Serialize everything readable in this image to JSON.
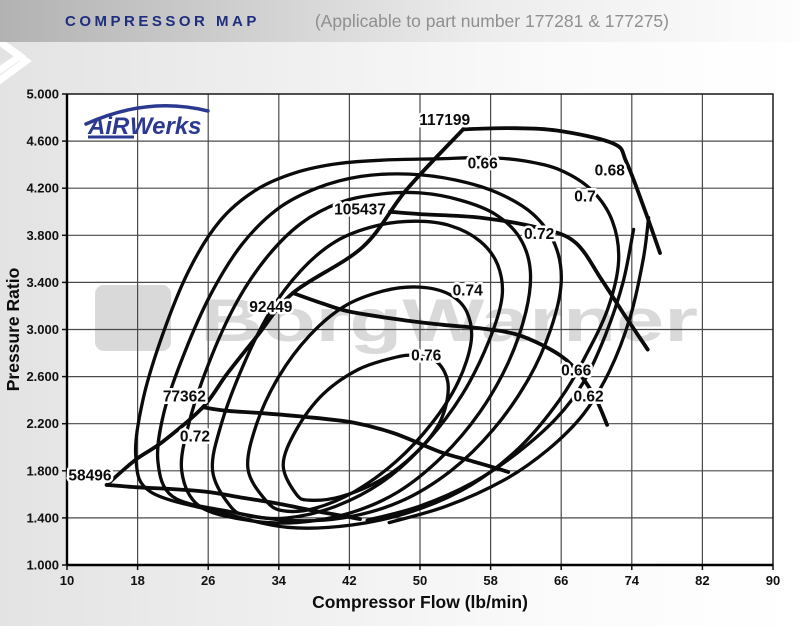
{
  "header": {
    "title": "COMPRESSOR MAP",
    "subtitle": "(Applicable to part number 177281 & 177275)"
  },
  "branding": {
    "plot_logo_air": "AiR",
    "plot_logo_werks": "Werks",
    "watermark_text": "BorgWarner"
  },
  "colors": {
    "header_title": "#1f2d7e",
    "header_subtitle": "#8f8f8f",
    "logo_navy": "#2b3990",
    "watermark_gray": "#d9d9d9",
    "curve_black": "#0b0b0b",
    "grid_gray": "#4a4a4a",
    "plot_bg": "#ffffff"
  },
  "chart_data": {
    "type": "line",
    "title": "COMPRESSOR MAP",
    "subtitle": "(Applicable to part number 177281 & 177275)",
    "xlabel": "Compressor Flow (lb/min)",
    "ylabel": "Pressure Ratio",
    "xlim": [
      10,
      90
    ],
    "ylim": [
      1.0,
      5.0
    ],
    "grid": true,
    "xticks": [
      "10",
      "18",
      "26",
      "34",
      "42",
      "50",
      "58",
      "66",
      "74",
      "82",
      "90"
    ],
    "yticks": [
      "1.000",
      "1.400",
      "1.800",
      "2.200",
      "2.600",
      "3.000",
      "3.400",
      "3.800",
      "4.200",
      "4.600",
      "5.000"
    ],
    "surge_line": {
      "name": "surge-line",
      "points": [
        [
          14.5,
          1.68
        ],
        [
          17.7,
          1.89
        ],
        [
          20.9,
          2.05
        ],
        [
          25.4,
          2.34
        ],
        [
          28.2,
          2.63
        ],
        [
          31.5,
          2.94
        ],
        [
          35.6,
          3.31
        ],
        [
          43.5,
          3.7
        ],
        [
          48.5,
          4.19
        ],
        [
          54.9,
          4.7
        ]
      ]
    },
    "speed_lines": [
      {
        "rpm": "58496",
        "label_at": [
          12.6,
          1.76
        ],
        "points": [
          [
            14.5,
            1.68
          ],
          [
            18,
            1.66
          ],
          [
            22,
            1.645
          ],
          [
            26,
            1.62
          ],
          [
            30,
            1.57
          ],
          [
            34,
            1.52
          ],
          [
            38,
            1.46
          ],
          [
            41,
            1.42
          ],
          [
            43.2,
            1.39
          ]
        ]
      },
      {
        "rpm": "77362",
        "label_at": [
          23.3,
          2.43
        ],
        "points": [
          [
            25.4,
            2.34
          ],
          [
            28,
            2.31
          ],
          [
            32,
            2.29
          ],
          [
            36.7,
            2.26
          ],
          [
            42.4,
            2.21
          ],
          [
            47,
            2.12
          ],
          [
            52.3,
            1.96
          ],
          [
            56,
            1.88
          ],
          [
            58.3,
            1.83
          ],
          [
            60,
            1.79
          ]
        ]
      },
      {
        "rpm": "92449",
        "label_at": [
          33.1,
          3.19
        ],
        "points": [
          [
            35.6,
            3.31
          ],
          [
            39,
            3.22
          ],
          [
            42.1,
            3.15
          ],
          [
            48.1,
            3.08
          ],
          [
            52.6,
            3.04
          ],
          [
            56.8,
            3.01
          ],
          [
            61.3,
            2.95
          ],
          [
            65.9,
            2.78
          ],
          [
            68.3,
            2.6
          ],
          [
            70,
            2.4
          ],
          [
            71.2,
            2.19
          ]
        ]
      },
      {
        "rpm": "105437",
        "label_at": [
          43.2,
          4.02
        ],
        "points": [
          [
            46.6,
            4.0
          ],
          [
            50,
            3.98
          ],
          [
            56.8,
            3.95
          ],
          [
            63.6,
            3.86
          ],
          [
            67.6,
            3.74
          ],
          [
            70.6,
            3.42
          ],
          [
            73.2,
            3.12
          ],
          [
            75.8,
            2.83
          ]
        ]
      },
      {
        "rpm": "117199",
        "label_at": [
          52.8,
          4.78
        ],
        "points": [
          [
            54.9,
            4.7
          ],
          [
            60,
            4.71
          ],
          [
            65.5,
            4.69
          ],
          [
            71.9,
            4.58
          ],
          [
            73.4,
            4.42
          ],
          [
            75.5,
            4.01
          ],
          [
            77.2,
            3.65
          ]
        ]
      }
    ],
    "efficiency_contours": [
      {
        "eta": "0.76",
        "closed": true,
        "points": [
          [
            36,
            1.6
          ],
          [
            34.5,
            1.85
          ],
          [
            36,
            2.15
          ],
          [
            39,
            2.45
          ],
          [
            43,
            2.66
          ],
          [
            47,
            2.76
          ],
          [
            49.5,
            2.78
          ],
          [
            52,
            2.72
          ],
          [
            53.2,
            2.52
          ],
          [
            52.3,
            2.22
          ],
          [
            49.5,
            1.95
          ],
          [
            45.5,
            1.72
          ],
          [
            41,
            1.58
          ],
          [
            37.5,
            1.55
          ]
        ],
        "labels": [
          [
            50.7,
            2.78
          ]
        ]
      },
      {
        "eta": "0.74",
        "closed": true,
        "points": [
          [
            32.5,
            1.55
          ],
          [
            30.5,
            1.82
          ],
          [
            31.5,
            2.2
          ],
          [
            34,
            2.6
          ],
          [
            37.5,
            2.95
          ],
          [
            41.5,
            3.2
          ],
          [
            46,
            3.33
          ],
          [
            50,
            3.36
          ],
          [
            53.3,
            3.3
          ],
          [
            55.3,
            3.15
          ],
          [
            55.8,
            2.9
          ],
          [
            54.3,
            2.55
          ],
          [
            51.3,
            2.2
          ],
          [
            47.3,
            1.88
          ],
          [
            42.5,
            1.62
          ],
          [
            38,
            1.48
          ],
          [
            34.5,
            1.46
          ]
        ],
        "labels": [
          [
            55.4,
            3.33
          ]
        ]
      },
      {
        "eta": "0.72",
        "closed": true,
        "points": [
          [
            28.5,
            1.5
          ],
          [
            26.5,
            1.8
          ],
          [
            27.5,
            2.2
          ],
          [
            30,
            2.7
          ],
          [
            33,
            3.15
          ],
          [
            36.5,
            3.5
          ],
          [
            40.5,
            3.75
          ],
          [
            45,
            3.88
          ],
          [
            49.5,
            3.92
          ],
          [
            53.5,
            3.88
          ],
          [
            56.8,
            3.75
          ],
          [
            58.8,
            3.55
          ],
          [
            59.3,
            3.28
          ],
          [
            57.8,
            2.9
          ],
          [
            54.8,
            2.45
          ],
          [
            50.8,
            2.05
          ],
          [
            46,
            1.72
          ],
          [
            40.5,
            1.5
          ],
          [
            35,
            1.4
          ],
          [
            30.5,
            1.42
          ]
        ],
        "labels": [
          [
            63.5,
            3.81
          ],
          [
            24.5,
            2.09
          ]
        ]
      },
      {
        "eta": "0.7",
        "closed": true,
        "points": [
          [
            25,
            1.5
          ],
          [
            23,
            1.8
          ],
          [
            23.8,
            2.2
          ],
          [
            26,
            2.7
          ],
          [
            29,
            3.2
          ],
          [
            32.5,
            3.6
          ],
          [
            36.5,
            3.9
          ],
          [
            41,
            4.08
          ],
          [
            45.5,
            4.15
          ],
          [
            50,
            4.16
          ],
          [
            54.5,
            4.1
          ],
          [
            58.5,
            3.98
          ],
          [
            61.3,
            3.78
          ],
          [
            62.5,
            3.5
          ],
          [
            62,
            3.15
          ],
          [
            60,
            2.72
          ],
          [
            56.8,
            2.3
          ],
          [
            52.5,
            1.92
          ],
          [
            47.5,
            1.62
          ],
          [
            42,
            1.44
          ],
          [
            36,
            1.36
          ],
          [
            30.5,
            1.38
          ]
        ],
        "labels": [
          [
            68.7,
            4.13
          ]
        ]
      },
      {
        "eta": "0.68",
        "closed": true,
        "points": [
          [
            22,
            1.58
          ],
          [
            20.3,
            1.88
          ],
          [
            21,
            2.3
          ],
          [
            23.3,
            2.8
          ],
          [
            26.3,
            3.3
          ],
          [
            29.8,
            3.72
          ],
          [
            33.8,
            4.02
          ],
          [
            38.3,
            4.2
          ],
          [
            43.3,
            4.3
          ],
          [
            48.8,
            4.32
          ],
          [
            54,
            4.27
          ],
          [
            58.8,
            4.16
          ],
          [
            62.8,
            3.98
          ],
          [
            65.3,
            3.72
          ],
          [
            66,
            3.4
          ],
          [
            64.8,
            3.0
          ],
          [
            62.3,
            2.58
          ],
          [
            58.3,
            2.15
          ],
          [
            53.5,
            1.8
          ],
          [
            47.8,
            1.54
          ],
          [
            41.3,
            1.4
          ],
          [
            34.8,
            1.38
          ],
          [
            28,
            1.46
          ]
        ],
        "labels": [
          [
            71.5,
            4.35
          ]
        ]
      },
      {
        "eta": "0.66",
        "closed": true,
        "points": [
          [
            19.5,
            1.62
          ],
          [
            17.8,
            1.92
          ],
          [
            18.6,
            2.4
          ],
          [
            20.8,
            2.95
          ],
          [
            23.8,
            3.5
          ],
          [
            27.3,
            3.92
          ],
          [
            31.3,
            4.18
          ],
          [
            35.8,
            4.33
          ],
          [
            40.8,
            4.41
          ],
          [
            46.3,
            4.44
          ],
          [
            52,
            4.45
          ],
          [
            57.5,
            4.46
          ],
          [
            62,
            4.43
          ],
          [
            66,
            4.35
          ],
          [
            69.5,
            4.18
          ],
          [
            71.8,
            3.92
          ],
          [
            72.5,
            3.58
          ],
          [
            71.3,
            3.18
          ],
          [
            68.8,
            2.78
          ],
          [
            65.8,
            2.4
          ],
          [
            61.3,
            2.0
          ],
          [
            55.8,
            1.68
          ],
          [
            49.3,
            1.46
          ],
          [
            42.3,
            1.34
          ],
          [
            35,
            1.32
          ],
          [
            27.8,
            1.44
          ]
        ],
        "labels": [
          [
            57.1,
            4.41
          ],
          [
            67.7,
            2.65
          ]
        ]
      },
      {
        "eta": "0.62",
        "closed": false,
        "points": [
          [
            44,
            1.38
          ],
          [
            50,
            1.5
          ],
          [
            56,
            1.7
          ],
          [
            61,
            1.95
          ],
          [
            65.5,
            2.25
          ],
          [
            68.5,
            2.55
          ],
          [
            71,
            2.95
          ],
          [
            73,
            3.4
          ],
          [
            74.2,
            3.85
          ]
        ],
        "labels": [
          [
            69.1,
            2.43
          ]
        ]
      },
      {
        "eta": null,
        "closed": false,
        "points": [
          [
            46.5,
            1.36
          ],
          [
            53,
            1.5
          ],
          [
            59.5,
            1.72
          ],
          [
            64.5,
            1.98
          ],
          [
            68.5,
            2.28
          ],
          [
            71.5,
            2.65
          ],
          [
            73.8,
            3.1
          ],
          [
            75.3,
            3.6
          ],
          [
            75.9,
            3.95
          ]
        ],
        "labels": []
      }
    ]
  }
}
